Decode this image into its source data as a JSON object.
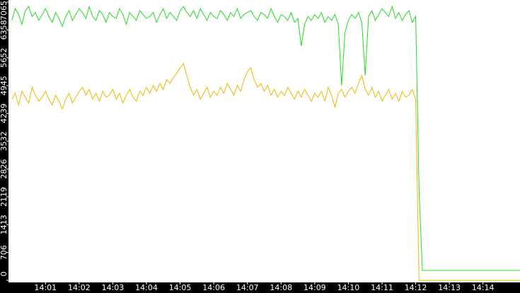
{
  "chart_data": {
    "type": "line",
    "x": [
      840,
      840.1,
      840.2,
      840.3,
      840.4,
      840.5,
      840.6,
      840.7,
      840.8,
      840.9,
      841,
      841.1,
      841.2,
      841.3,
      841.4,
      841.5,
      841.6,
      841.7,
      841.8,
      841.9,
      842,
      842.1,
      842.2,
      842.3,
      842.4,
      842.5,
      842.6,
      842.7,
      842.8,
      842.9,
      843,
      843.1,
      843.2,
      843.3,
      843.4,
      843.5,
      843.6,
      843.7,
      843.8,
      843.9,
      844,
      844.1,
      844.2,
      844.3,
      844.4,
      844.5,
      844.6,
      844.7,
      844.8,
      844.9,
      845,
      845.1,
      845.2,
      845.3,
      845.4,
      845.5,
      845.6,
      845.7,
      845.8,
      845.9,
      846,
      846.1,
      846.2,
      846.3,
      846.4,
      846.5,
      846.6,
      846.7,
      846.8,
      846.9,
      847,
      847.1,
      847.2,
      847.3,
      847.4,
      847.5,
      847.6,
      847.7,
      847.8,
      847.9,
      848,
      848.1,
      848.2,
      848.3,
      848.4,
      848.5,
      848.6,
      848.7,
      848.8,
      848.9,
      849,
      849.1,
      849.2,
      849.3,
      849.4,
      849.5,
      849.6,
      849.7,
      849.8,
      849.9,
      850,
      850.1,
      850.2,
      850.3,
      850.4,
      850.5,
      850.6,
      850.7,
      850.8,
      850.9,
      851,
      851.1,
      851.2,
      851.3,
      851.4,
      851.5,
      851.6,
      851.7,
      851.8,
      851.9,
      852,
      852.1,
      852.2,
      855.1
    ],
    "series": [
      {
        "color": "#22dd22",
        "values": [
          6600,
          6900,
          6750,
          6500,
          6850,
          6950,
          6700,
          6800,
          6600,
          6750,
          6900,
          6700,
          6550,
          6800,
          6650,
          6450,
          6700,
          6850,
          6600,
          6750,
          6900,
          6800,
          6650,
          6950,
          6700,
          6600,
          6850,
          6750,
          6550,
          6800,
          6700,
          6650,
          6900,
          6750,
          6500,
          6800,
          6700,
          6600,
          6850,
          6750,
          6650,
          6700,
          6800,
          6550,
          6750,
          6900,
          6650,
          6800,
          6700,
          6600,
          6850,
          6950,
          6800,
          6700,
          6850,
          6650,
          6900,
          6750,
          6600,
          6800,
          6700,
          6650,
          6850,
          6750,
          6600,
          6800,
          6700,
          6900,
          6650,
          6750,
          6800,
          6850,
          6700,
          6600,
          6800,
          6750,
          6650,
          6900,
          6700,
          6550,
          6750,
          6700,
          6600,
          6800,
          6550,
          6650,
          5950,
          6500,
          6700,
          6600,
          6750,
          6650,
          6800,
          6550,
          6700,
          6600,
          6750,
          6500,
          4950,
          6300,
          6600,
          6750,
          6650,
          6800,
          6550,
          5200,
          6700,
          6850,
          6600,
          6750,
          6900,
          6800,
          6700,
          6950,
          6650,
          6800,
          6600,
          6750,
          6850,
          6550,
          6700,
          2300,
          250,
          250
        ]
      },
      {
        "color": "#f0b800",
        "values": [
          4600,
          4750,
          4450,
          4800,
          4650,
          4500,
          4900,
          4700,
          4550,
          4650,
          4800,
          4600,
          4450,
          4700,
          4550,
          4350,
          4600,
          4750,
          4500,
          4650,
          4800,
          4900,
          4700,
          4850,
          4600,
          4750,
          4550,
          4800,
          4650,
          4700,
          4850,
          4600,
          4750,
          4500,
          4700,
          4850,
          4650,
          4550,
          4800,
          4700,
          4900,
          4750,
          4950,
          4800,
          5000,
          4850,
          5100,
          5000,
          5150,
          5250,
          5400,
          5500,
          5200,
          4900,
          4700,
          4850,
          4600,
          4750,
          4900,
          4650,
          4800,
          4700,
          4900,
          4750,
          5000,
          4850,
          4700,
          4950,
          4800,
          5100,
          5300,
          5400,
          5100,
          4900,
          5000,
          4800,
          4950,
          4700,
          4850,
          4650,
          4800,
          4700,
          4900,
          4750,
          4600,
          4800,
          4650,
          4850,
          4700,
          4550,
          4750,
          4650,
          4800,
          4550,
          4900,
          4700,
          4400,
          4750,
          4850,
          4650,
          4800,
          4900,
          4750,
          5000,
          5200,
          4850,
          4700,
          4900,
          4650,
          4800,
          4550,
          4700,
          4850,
          4600,
          4750,
          4550,
          4800,
          4650,
          4700,
          4850,
          4600,
          0,
          0,
          0
        ]
      }
    ],
    "xlim": [
      839.9,
      855.1
    ],
    "xticks": [
      {
        "value": 841,
        "label": "14:01"
      },
      {
        "value": 842,
        "label": "14:02"
      },
      {
        "value": 843,
        "label": "14:03"
      },
      {
        "value": 844,
        "label": "14:04"
      },
      {
        "value": 845,
        "label": "14:05"
      },
      {
        "value": 846,
        "label": "14:06"
      },
      {
        "value": 847,
        "label": "14:07"
      },
      {
        "value": 848,
        "label": "14:08"
      },
      {
        "value": 849,
        "label": "14:09"
      },
      {
        "value": 850,
        "label": "14:10"
      },
      {
        "value": 851,
        "label": "14:11"
      },
      {
        "value": 852,
        "label": "14:12"
      },
      {
        "value": 853,
        "label": "14:13"
      },
      {
        "value": 854,
        "label": "14:14"
      }
    ],
    "ylim": [
      0,
      7065
    ],
    "yticks": [
      0,
      706,
      1413,
      2119,
      2826,
      3532,
      4239,
      4945,
      5652,
      6358,
      7065
    ]
  }
}
